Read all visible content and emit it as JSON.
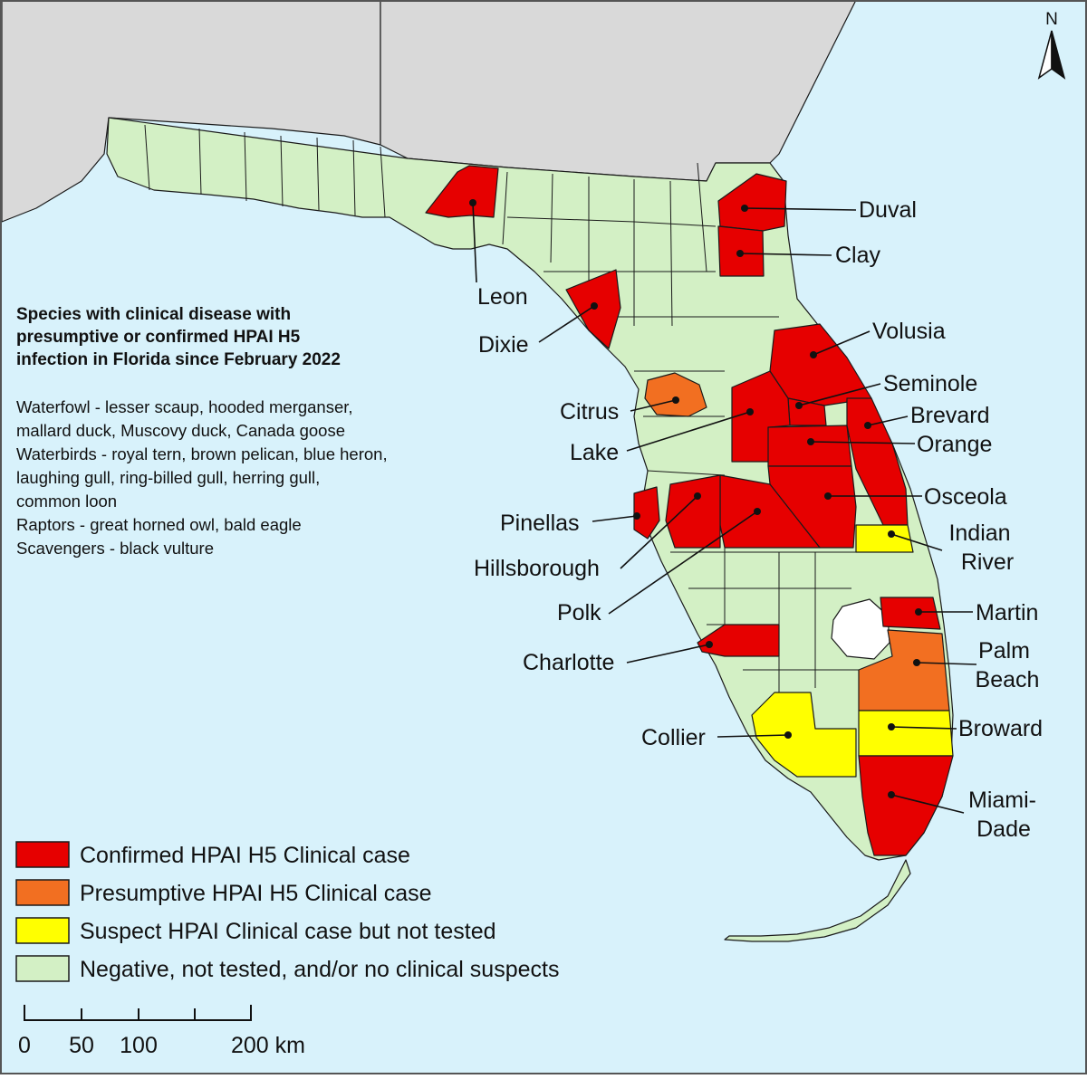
{
  "colors": {
    "ocean": "#d8f2fb",
    "land_outside": "#d9d9d9",
    "confirmed": "#e60000",
    "presumptive": "#f26f21",
    "suspect": "#ffff00",
    "negative": "#d3f0c5",
    "border": "#1a1a1a"
  },
  "north_arrow": {
    "label": "N"
  },
  "info_box": {
    "title_lines": [
      "Species with clinical disease with",
      "presumptive or confirmed HPAI H5",
      "infection in Florida since February 2022"
    ],
    "lines": [
      "Waterfowl - lesser scaup, hooded merganser,",
      "mallard duck, Muscovy duck, Canada goose",
      "Waterbirds - royal tern, brown pelican, blue heron,",
      "laughing gull, ring-billed gull, herring gull,",
      "common loon",
      "Raptors - great horned owl, bald eagle",
      "Scavengers - black vulture"
    ]
  },
  "counties": [
    {
      "name": "Leon",
      "label_lines": [
        "Leon"
      ],
      "status": "confirmed"
    },
    {
      "name": "Dixie",
      "label_lines": [
        "Dixie"
      ],
      "status": "confirmed"
    },
    {
      "name": "Duval",
      "label_lines": [
        "Duval"
      ],
      "status": "confirmed"
    },
    {
      "name": "Clay",
      "label_lines": [
        "Clay"
      ],
      "status": "confirmed"
    },
    {
      "name": "Volusia",
      "label_lines": [
        "Volusia"
      ],
      "status": "confirmed"
    },
    {
      "name": "Seminole",
      "label_lines": [
        "Seminole"
      ],
      "status": "confirmed"
    },
    {
      "name": "Brevard",
      "label_lines": [
        "Brevard"
      ],
      "status": "confirmed"
    },
    {
      "name": "Orange",
      "label_lines": [
        "Orange"
      ],
      "status": "confirmed"
    },
    {
      "name": "Osceola",
      "label_lines": [
        "Osceola"
      ],
      "status": "confirmed"
    },
    {
      "name": "Indian River",
      "label_lines": [
        "Indian",
        "River"
      ],
      "status": "suspect"
    },
    {
      "name": "Martin",
      "label_lines": [
        "Martin"
      ],
      "status": "confirmed"
    },
    {
      "name": "Palm Beach",
      "label_lines": [
        "Palm",
        "Beach"
      ],
      "status": "presumptive"
    },
    {
      "name": "Broward",
      "label_lines": [
        "Broward"
      ],
      "status": "suspect"
    },
    {
      "name": "Miami-Dade",
      "label_lines": [
        "Miami-",
        "Dade"
      ],
      "status": "confirmed"
    },
    {
      "name": "Citrus",
      "label_lines": [
        "Citrus"
      ],
      "status": "presumptive"
    },
    {
      "name": "Lake",
      "label_lines": [
        "Lake"
      ],
      "status": "confirmed"
    },
    {
      "name": "Pinellas",
      "label_lines": [
        "Pinellas"
      ],
      "status": "confirmed"
    },
    {
      "name": "Hillsborough",
      "label_lines": [
        "Hillsborough"
      ],
      "status": "confirmed"
    },
    {
      "name": "Polk",
      "label_lines": [
        "Polk"
      ],
      "status": "confirmed"
    },
    {
      "name": "Charlotte",
      "label_lines": [
        "Charlotte"
      ],
      "status": "confirmed"
    },
    {
      "name": "Collier",
      "label_lines": [
        "Collier"
      ],
      "status": "suspect"
    }
  ],
  "legend": [
    {
      "status": "confirmed",
      "label": "Confirmed HPAI H5 Clinical case"
    },
    {
      "status": "presumptive",
      "label": "Presumptive HPAI H5 Clinical case"
    },
    {
      "status": "suspect",
      "label": "Suspect HPAI Clinical case but not tested"
    },
    {
      "status": "negative",
      "label": "Negative, not tested, and/or no clinical suspects"
    }
  ],
  "scale_bar": {
    "tick_labels": [
      "0",
      "50",
      "100",
      "200 km"
    ]
  }
}
